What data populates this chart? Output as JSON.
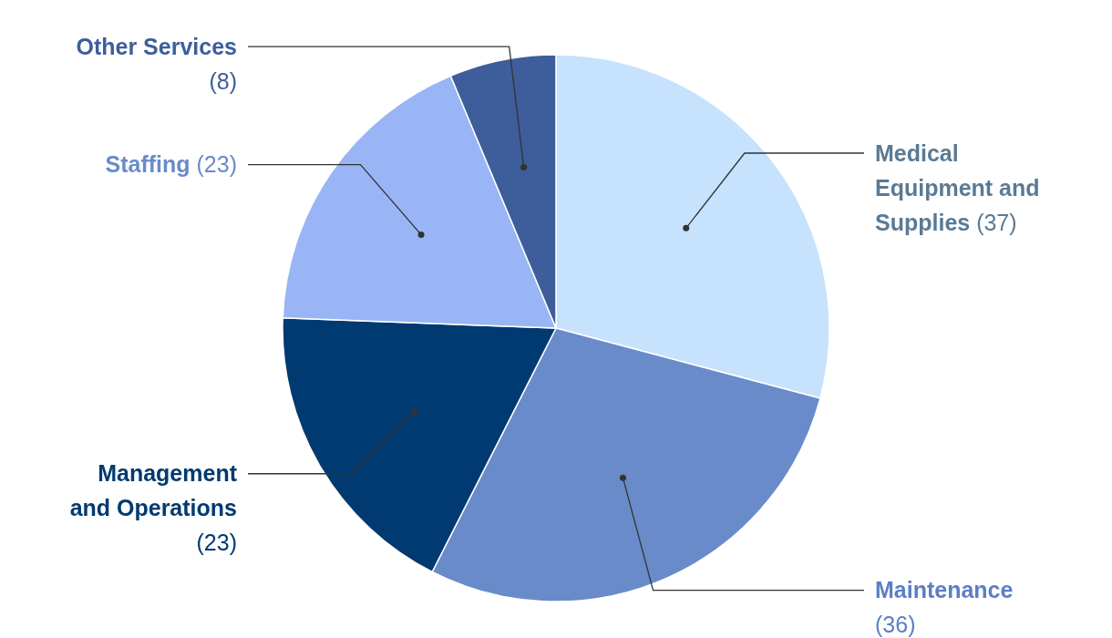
{
  "chart_data": {
    "type": "pie",
    "categories": [
      "Medical Equipment and Supplies",
      "Maintenance",
      "Management and Operations",
      "Staffing",
      "Other Services"
    ],
    "values": [
      37,
      36,
      23,
      23,
      8
    ],
    "colors": [
      "#c6e2fd",
      "#6a8bc9",
      "#003a70",
      "#99b5f5",
      "#3d5e9a"
    ],
    "value_labels": [
      "(37)",
      "(36)",
      "(23)",
      "(23)",
      "(8)"
    ]
  }
}
